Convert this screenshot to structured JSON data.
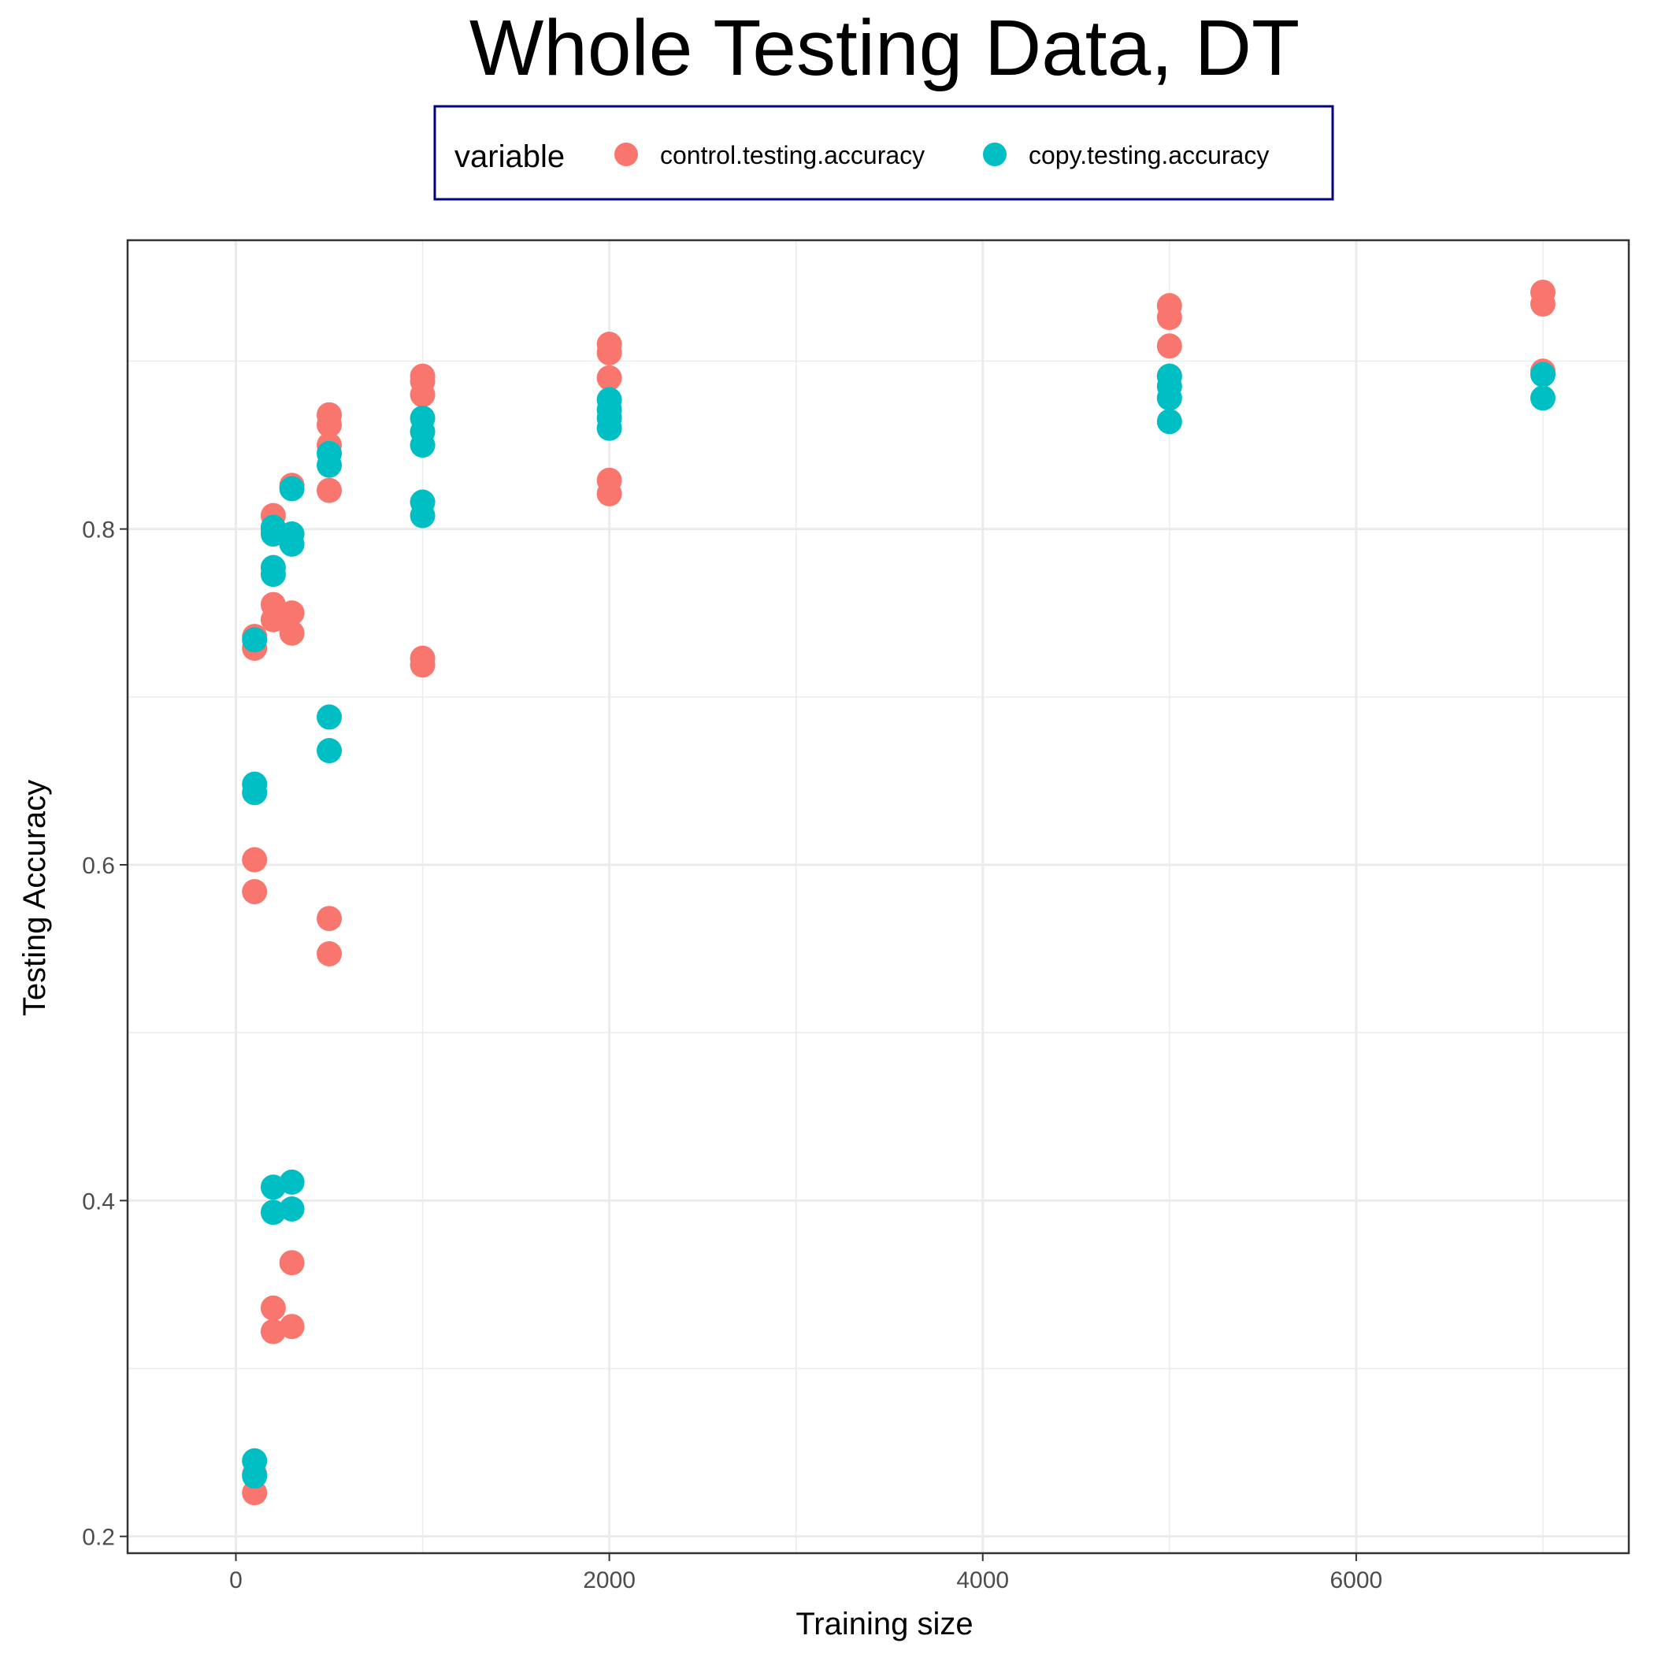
{
  "chart_data": {
    "type": "scatter",
    "title": "Whole Testing Data, DT",
    "xlabel": "Training size",
    "ylabel": "Testing Accuracy",
    "xlim": [
      -580,
      7460
    ],
    "ylim": [
      0.19,
      0.972
    ],
    "x_ticks": [
      0,
      2000,
      4000,
      6000
    ],
    "x_tick_labels": [
      "0",
      "2000",
      "4000",
      "6000"
    ],
    "y_ticks": [
      0.2,
      0.4,
      0.6,
      0.8
    ],
    "y_tick_labels": [
      "0.2",
      "0.4",
      "0.6",
      "0.8"
    ],
    "x_minor": [
      1000,
      3000,
      5000,
      7000
    ],
    "y_minor": [
      0.3,
      0.5,
      0.7,
      0.9
    ],
    "grid": true,
    "legend": {
      "title": "variable",
      "position": "top",
      "border_color": "#000080"
    },
    "series": [
      {
        "name": "control.testing.accuracy",
        "color": "#F8766D",
        "points": [
          [
            100,
            0.736
          ],
          [
            100,
            0.729
          ],
          [
            100,
            0.603
          ],
          [
            100,
            0.584
          ],
          [
            100,
            0.237
          ],
          [
            100,
            0.226
          ],
          [
            200,
            0.808
          ],
          [
            200,
            0.8
          ],
          [
            200,
            0.755
          ],
          [
            200,
            0.746
          ],
          [
            200,
            0.336
          ],
          [
            200,
            0.322
          ],
          [
            300,
            0.826
          ],
          [
            300,
            0.75
          ],
          [
            300,
            0.738
          ],
          [
            300,
            0.363
          ],
          [
            300,
            0.325
          ],
          [
            500,
            0.868
          ],
          [
            500,
            0.862
          ],
          [
            500,
            0.85
          ],
          [
            500,
            0.823
          ],
          [
            500,
            0.568
          ],
          [
            500,
            0.547
          ],
          [
            1000,
            0.891
          ],
          [
            1000,
            0.888
          ],
          [
            1000,
            0.88
          ],
          [
            1000,
            0.723
          ],
          [
            1000,
            0.719
          ],
          [
            2000,
            0.91
          ],
          [
            2000,
            0.905
          ],
          [
            2000,
            0.89
          ],
          [
            2000,
            0.829
          ],
          [
            2000,
            0.821
          ],
          [
            5000,
            0.933
          ],
          [
            5000,
            0.926
          ],
          [
            5000,
            0.909
          ],
          [
            5000,
            0.891
          ],
          [
            7000,
            0.941
          ],
          [
            7000,
            0.934
          ],
          [
            7000,
            0.894
          ]
        ]
      },
      {
        "name": "copy.testing.accuracy",
        "color": "#00BFC4",
        "points": [
          [
            100,
            0.734
          ],
          [
            100,
            0.648
          ],
          [
            100,
            0.643
          ],
          [
            100,
            0.245
          ],
          [
            100,
            0.236
          ],
          [
            200,
            0.801
          ],
          [
            200,
            0.797
          ],
          [
            200,
            0.777
          ],
          [
            200,
            0.773
          ],
          [
            200,
            0.408
          ],
          [
            200,
            0.393
          ],
          [
            300,
            0.824
          ],
          [
            300,
            0.797
          ],
          [
            300,
            0.791
          ],
          [
            300,
            0.411
          ],
          [
            300,
            0.395
          ],
          [
            500,
            0.845
          ],
          [
            500,
            0.838
          ],
          [
            500,
            0.688
          ],
          [
            500,
            0.668
          ],
          [
            1000,
            0.866
          ],
          [
            1000,
            0.858
          ],
          [
            1000,
            0.85
          ],
          [
            1000,
            0.816
          ],
          [
            1000,
            0.808
          ],
          [
            2000,
            0.877
          ],
          [
            2000,
            0.871
          ],
          [
            2000,
            0.866
          ],
          [
            2000,
            0.86
          ],
          [
            5000,
            0.891
          ],
          [
            5000,
            0.885
          ],
          [
            5000,
            0.878
          ],
          [
            5000,
            0.864
          ],
          [
            7000,
            0.892
          ],
          [
            7000,
            0.878
          ]
        ]
      }
    ]
  }
}
